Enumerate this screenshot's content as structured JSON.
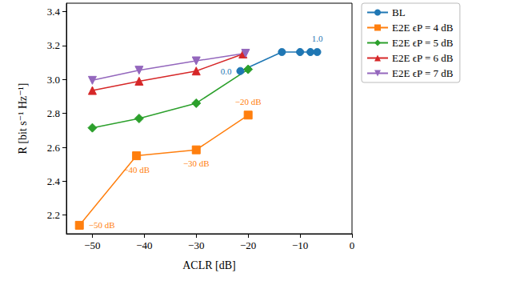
{
  "chart_data": {
    "type": "line",
    "x_label": "ACLR [dB]",
    "y_label": "R [bit s⁻¹ Hz⁻¹]",
    "xlim": [
      -55,
      0
    ],
    "xticks": [
      {
        "value": -50,
        "label": "−50"
      },
      {
        "value": -40,
        "label": "−40"
      },
      {
        "value": -30,
        "label": "−30"
      },
      {
        "value": -20,
        "label": "−20"
      },
      {
        "value": -10,
        "label": "−10"
      },
      0
    ],
    "ylim": [
      2.09,
      3.45
    ],
    "yticks": [
      2.2,
      2.4,
      2.6,
      2.8,
      {
        "value": 3.0,
        "label": "3.0"
      },
      3.2,
      3.4
    ],
    "grid": false,
    "legend": "outside-right",
    "series": [
      {
        "name": "BL",
        "color": "#1f77b4",
        "marker": "circle",
        "x": [
          -21.5,
          -13.5,
          -10,
          -8,
          -6.7
        ],
        "values": [
          3.05,
          3.162,
          3.162,
          3.162,
          3.162
        ],
        "point_labels": [
          "0.0",
          null,
          null,
          null,
          "1.0"
        ]
      },
      {
        "name": "E2E ϵP = 4 dB",
        "color": "#ff7f0e",
        "marker": "square",
        "x": [
          -52.5,
          -41.5,
          -30,
          -20
        ],
        "values": [
          2.14,
          2.55,
          2.585,
          2.79
        ],
        "point_labels": [
          "−50 dB",
          "−40 dB",
          "−30 dB",
          "−20 dB"
        ]
      },
      {
        "name": "E2E ϵP = 5 dB",
        "color": "#2ca02c",
        "marker": "diamond",
        "x": [
          -50,
          -41,
          -30,
          -20
        ],
        "values": [
          2.715,
          2.77,
          2.86,
          3.06
        ]
      },
      {
        "name": "E2E ϵP = 6 dB",
        "color": "#d62728",
        "marker": "triangle",
        "x": [
          -50,
          -41,
          -30,
          -21
        ],
        "values": [
          2.935,
          2.99,
          3.05,
          3.15
        ]
      },
      {
        "name": "E2E ϵP = 7 dB",
        "color": "#9467bd",
        "marker": "triangle-down",
        "x": [
          -50,
          -41,
          -30,
          -20.5
        ],
        "values": [
          2.995,
          3.055,
          3.11,
          3.155
        ]
      }
    ]
  }
}
